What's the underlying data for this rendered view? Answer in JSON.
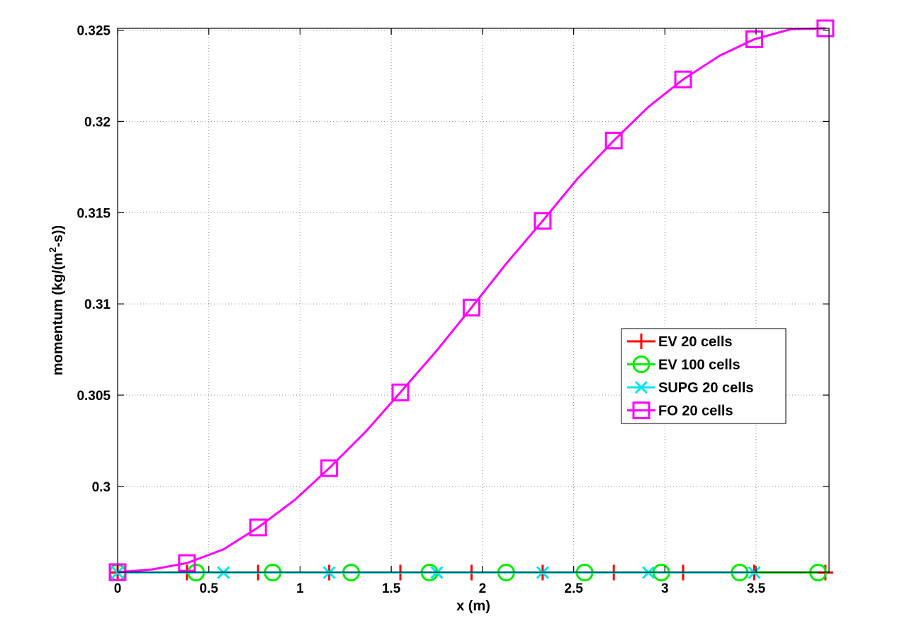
{
  "chart_data": {
    "type": "line",
    "xlabel": "x (m)",
    "ylabel": {
      "pre": "momentum (kg/(m",
      "sup": "2",
      "post": "-s))"
    },
    "xlim": [
      0,
      3.9
    ],
    "ylim": [
      0.2953,
      0.3251
    ],
    "xticks": [
      0,
      0.5,
      1,
      1.5,
      2,
      2.5,
      3,
      3.5
    ],
    "xtick_labels": [
      "0",
      "0.5",
      "1",
      "1.5",
      "2",
      "2.5",
      "3",
      "3.5"
    ],
    "yticks": [
      0.3,
      0.305,
      0.31,
      0.315,
      0.32,
      0.325
    ],
    "ytick_labels": [
      "0.3",
      "0.305",
      "0.31",
      "0.315",
      "0.32",
      "0.325"
    ],
    "grid": true,
    "legend_position": "right-middle",
    "series": [
      {
        "name": "EV 20 cells",
        "color": "#ff0000",
        "marker": "plus",
        "x": [
          0,
          0.38,
          0.77,
          1.16,
          1.55,
          1.94,
          2.33,
          2.72,
          3.1,
          3.49,
          3.88
        ],
        "y": [
          0.29528,
          0.29528,
          0.29528,
          0.29528,
          0.29528,
          0.29528,
          0.29528,
          0.29528,
          0.29528,
          0.29528,
          0.29528
        ],
        "marker_x": [
          0,
          0.38,
          0.77,
          1.16,
          1.55,
          1.94,
          2.33,
          2.72,
          3.1,
          3.49,
          3.88
        ]
      },
      {
        "name": "EV 100 cells",
        "color": "#00ee00",
        "marker": "circle",
        "x": [
          0,
          0.43,
          0.85,
          1.28,
          1.71,
          2.13,
          2.56,
          2.98,
          3.41,
          3.84
        ],
        "y": [
          0.29528,
          0.29528,
          0.29528,
          0.29528,
          0.29528,
          0.29528,
          0.29528,
          0.29528,
          0.29528,
          0.29528
        ],
        "marker_x": [
          0,
          0.43,
          0.85,
          1.28,
          1.71,
          2.13,
          2.56,
          2.98,
          3.41,
          3.84
        ]
      },
      {
        "name": "SUPG 20 cells",
        "color": "#00e5ee",
        "marker": "x",
        "x": [
          0,
          0.58,
          1.16,
          1.75,
          2.33,
          2.91,
          3.49
        ],
        "y": [
          0.29528,
          0.29528,
          0.29528,
          0.29528,
          0.29528,
          0.29528,
          0.29528
        ],
        "marker_x": [
          0,
          0.58,
          1.16,
          1.75,
          2.33,
          2.91,
          3.49
        ]
      },
      {
        "name": "FO 20 cells",
        "color": "#ff00ff",
        "marker": "square",
        "x": [
          0,
          0.19,
          0.38,
          0.58,
          0.77,
          0.97,
          1.16,
          1.36,
          1.55,
          1.75,
          1.94,
          2.13,
          2.33,
          2.52,
          2.72,
          2.91,
          3.1,
          3.3,
          3.49,
          3.69,
          3.88
        ],
        "y": [
          0.2953,
          0.29545,
          0.2958,
          0.29655,
          0.29775,
          0.29925,
          0.301,
          0.303,
          0.30515,
          0.30745,
          0.3098,
          0.3122,
          0.31455,
          0.31685,
          0.31895,
          0.3208,
          0.3223,
          0.3236,
          0.3245,
          0.32505,
          0.3251
        ],
        "marker_x": [
          0,
          0.38,
          0.77,
          1.16,
          1.55,
          1.94,
          2.33,
          2.72,
          3.1,
          3.49,
          3.88
        ]
      }
    ]
  }
}
